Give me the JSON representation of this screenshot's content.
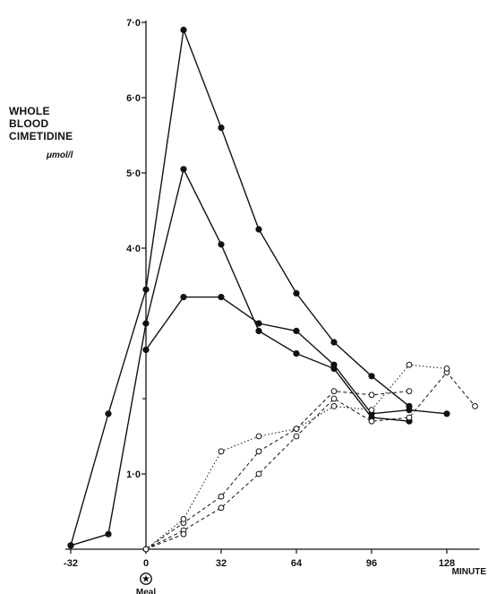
{
  "chart_data": {
    "type": "line",
    "ylabel_lines": [
      "WHOLE",
      "BLOOD",
      "CIMETIDINE"
    ],
    "ylabel_unit": "μmol/l",
    "xlabel": "MINUTE",
    "meal_label": "Meal",
    "xlim": [
      -32,
      140
    ],
    "ylim": [
      0,
      7.0
    ],
    "x_ticks": [
      {
        "value": -32,
        "label": "-32"
      },
      {
        "value": 0,
        "label": "0"
      },
      {
        "value": 32,
        "label": "32"
      },
      {
        "value": 64,
        "label": "64"
      },
      {
        "value": 96,
        "label": "96"
      },
      {
        "value": 128,
        "label": "128"
      }
    ],
    "y_ticks": [
      {
        "value": 1.0,
        "label": "1·0"
      },
      {
        "value": 4.0,
        "label": "4·0"
      },
      {
        "value": 5.0,
        "label": "5·0"
      },
      {
        "value": 6.0,
        "label": "6·0"
      },
      {
        "value": 7.0,
        "label": "7·0"
      }
    ],
    "y_minor_ticks": [
      2.0,
      3.0
    ],
    "series": [
      {
        "style": "solid",
        "marker": "filled",
        "points": [
          [
            -32,
            0.05
          ],
          [
            -16,
            1.8
          ],
          [
            0,
            3.45
          ],
          [
            16,
            6.9
          ],
          [
            32,
            5.6
          ],
          [
            48,
            4.25
          ],
          [
            64,
            3.4
          ],
          [
            80,
            2.75
          ],
          [
            96,
            2.3
          ],
          [
            112,
            1.9
          ]
        ]
      },
      {
        "style": "solid",
        "marker": "filled",
        "points": [
          [
            -32,
            0.05
          ],
          [
            -16,
            0.2
          ],
          [
            0,
            3.0
          ],
          [
            16,
            5.05
          ],
          [
            32,
            4.05
          ],
          [
            48,
            2.9
          ],
          [
            64,
            2.6
          ],
          [
            80,
            2.4
          ],
          [
            96,
            1.75
          ],
          [
            112,
            1.7
          ]
        ]
      },
      {
        "style": "solid",
        "marker": "filled",
        "points": [
          [
            0,
            2.65
          ],
          [
            16,
            3.35
          ],
          [
            32,
            3.35
          ],
          [
            48,
            3.0
          ],
          [
            64,
            2.9
          ],
          [
            80,
            2.45
          ],
          [
            96,
            1.8
          ],
          [
            112,
            1.85
          ],
          [
            128,
            1.8
          ]
        ]
      },
      {
        "style": "dashed",
        "marker": "open",
        "points": [
          [
            0,
            0.0
          ],
          [
            16,
            0.35
          ],
          [
            32,
            0.7
          ],
          [
            48,
            1.3
          ],
          [
            64,
            1.6
          ],
          [
            80,
            2.1
          ],
          [
            96,
            2.05
          ],
          [
            112,
            2.1
          ]
        ]
      },
      {
        "style": "dashed",
        "marker": "open",
        "points": [
          [
            0,
            0.0
          ],
          [
            16,
            0.25
          ],
          [
            32,
            0.55
          ],
          [
            48,
            1.0
          ],
          [
            64,
            1.5
          ],
          [
            80,
            2.0
          ],
          [
            96,
            1.7
          ],
          [
            112,
            1.75
          ],
          [
            128,
            2.35
          ],
          [
            140,
            1.9
          ]
        ]
      },
      {
        "style": "dotted",
        "marker": "open",
        "points": [
          [
            0,
            0.0
          ],
          [
            16,
            0.4
          ],
          [
            32,
            1.3
          ],
          [
            48,
            1.5
          ],
          [
            64,
            1.6
          ],
          [
            80,
            1.9
          ],
          [
            96,
            1.85
          ],
          [
            112,
            2.45
          ],
          [
            128,
            2.4
          ]
        ]
      },
      {
        "style": "dashed",
        "marker": "open",
        "points": [
          [
            0,
            0.0
          ],
          [
            16,
            0.2
          ]
        ]
      }
    ],
    "grid": false,
    "legend": "none"
  }
}
